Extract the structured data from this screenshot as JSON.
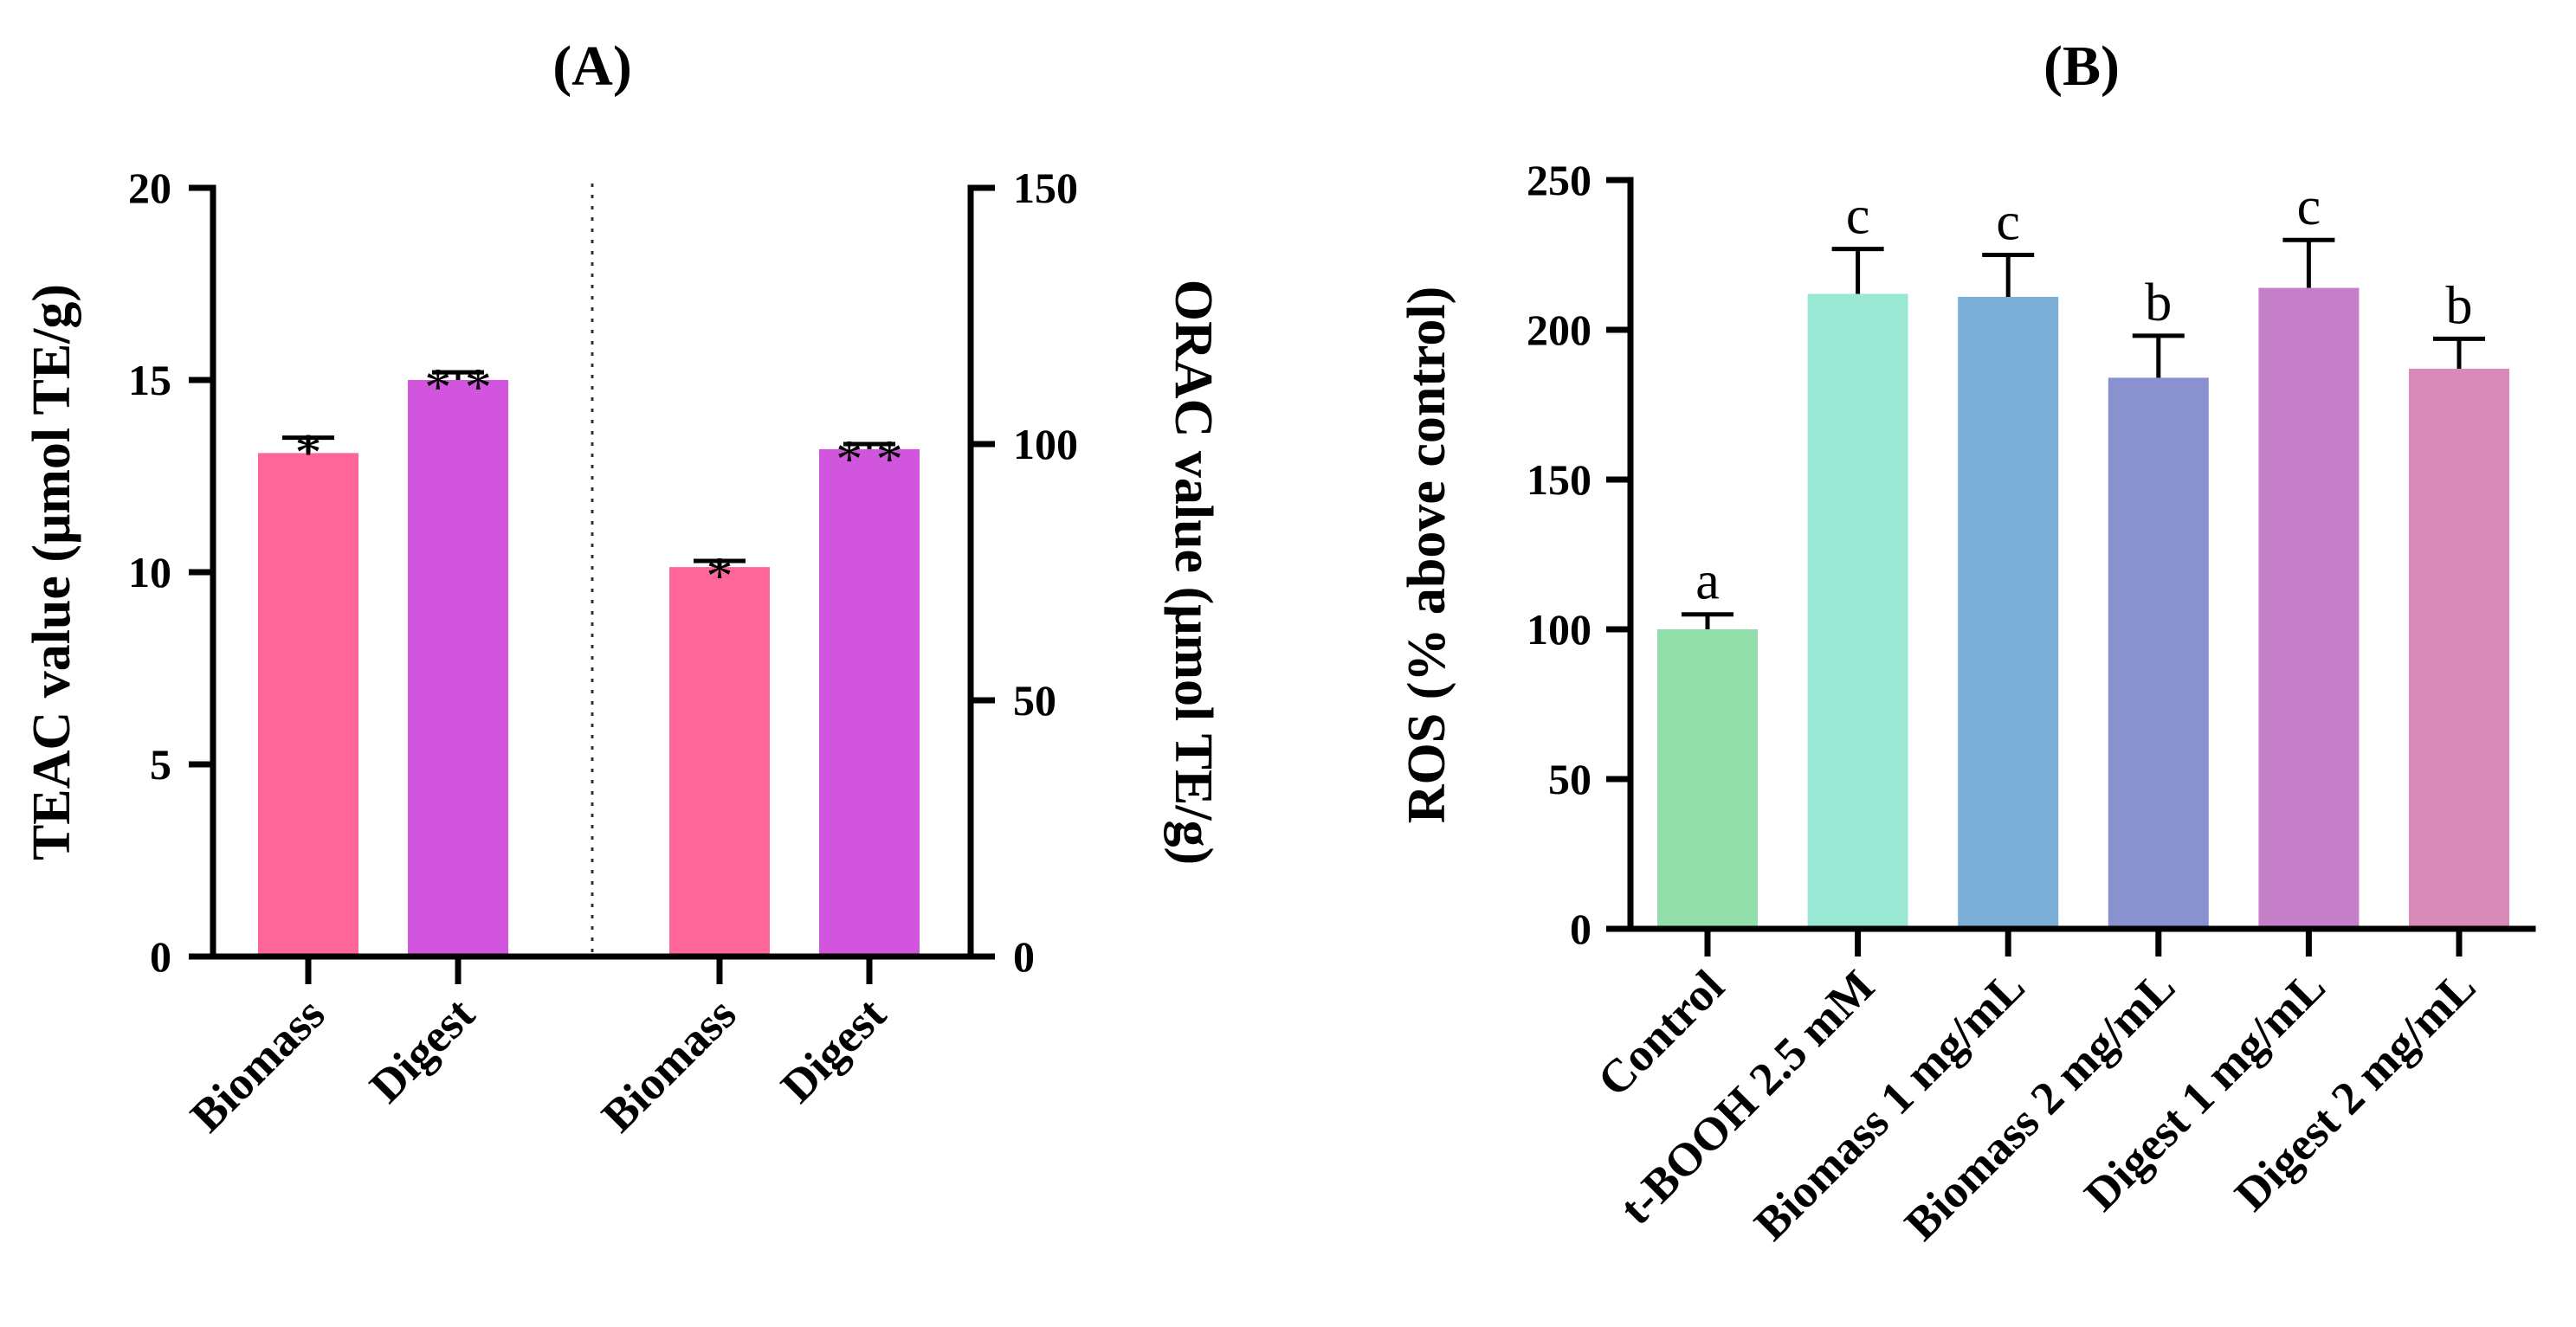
{
  "chart_data": [
    {
      "type": "bar",
      "panel_label": "(A)",
      "left_axis": {
        "label": "TEAC value (μmol TE/g)",
        "ylim": [
          0,
          20
        ],
        "ticks": [
          "0",
          "5",
          "10",
          "15",
          "20"
        ]
      },
      "right_axis": {
        "label": "ORAC value (μmol TE/g)",
        "ylim": [
          0,
          150
        ],
        "ticks": [
          "0",
          "50",
          "100",
          "150"
        ]
      },
      "groups": [
        {
          "axis": "left",
          "categories": [
            "Biomass",
            "Digest"
          ],
          "values": [
            13.1,
            15.0
          ],
          "errors": [
            0.4,
            0.2
          ],
          "annotations": [
            "*",
            "**"
          ],
          "colors": [
            "#ff6699",
            "#d155dd"
          ]
        },
        {
          "axis": "right",
          "categories": [
            "Biomass",
            "Digest"
          ],
          "values": [
            76,
            99
          ],
          "errors": [
            1.2,
            1.0
          ],
          "annotations": [
            "*",
            "**"
          ],
          "colors": [
            "#ff6699",
            "#d155dd"
          ]
        }
      ],
      "divider": "dotted vertical line between groups"
    },
    {
      "type": "bar",
      "panel_label": "(B)",
      "ylabel": "ROS (% above control)",
      "ylim": [
        0,
        250
      ],
      "ticks": [
        "0",
        "50",
        "100",
        "150",
        "200",
        "250"
      ],
      "categories": [
        "Control",
        "t-BOOH 2.5 mM",
        "Biomass 1 mg/mL",
        "Biomass 2 mg/mL",
        "Digest 1 mg/mL",
        "Digest 2 mg/mL"
      ],
      "values": [
        100,
        212,
        211,
        184,
        214,
        187
      ],
      "errors": [
        5,
        15,
        14,
        14,
        16,
        10
      ],
      "annotations": [
        "a",
        "c",
        "c",
        "b",
        "c",
        "b"
      ],
      "colors": [
        "#93dfab",
        "#9ae8d4",
        "#7aaed6",
        "#8a91cf",
        "#c47fc8",
        "#d88bb7"
      ]
    }
  ]
}
